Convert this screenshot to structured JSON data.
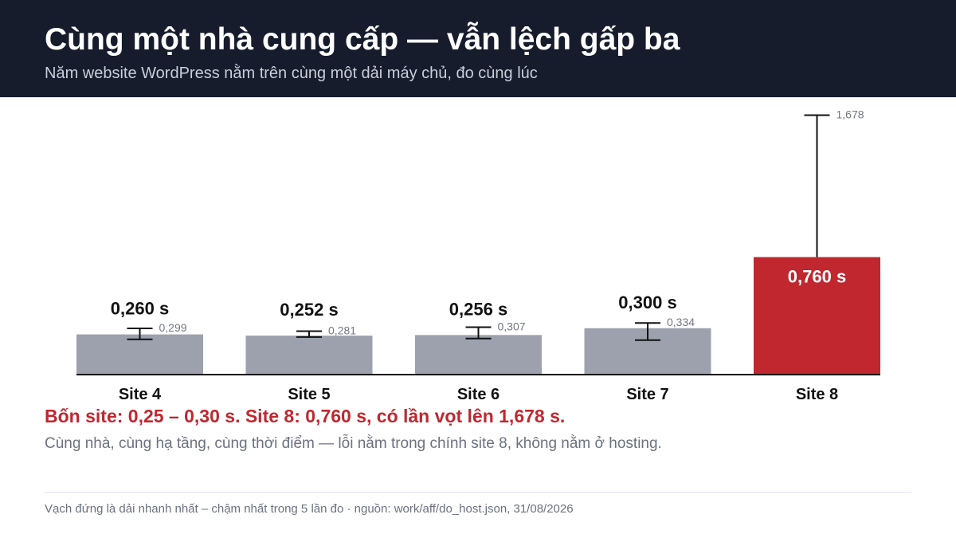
{
  "header": {
    "title": "Cùng một nhà cung cấp — vẫn lệch gấp ba",
    "subtitle": "Năm website WordPress nằm trên cùng một dải máy chủ, đo cùng lúc"
  },
  "colors": {
    "header_bg": "#161c2c",
    "bar_default": "#9ca1ad",
    "bar_highlight": "#c0272f",
    "axis": "#111111",
    "headline": "#c0272f"
  },
  "chart_data": {
    "type": "bar",
    "categories": [
      "Site 4",
      "Site 5",
      "Site 6",
      "Site 7",
      "Site 8"
    ],
    "values": [
      0.26,
      0.252,
      0.256,
      0.3,
      0.76
    ],
    "value_labels": [
      "0,260 s",
      "0,252 s",
      "0,256 s",
      "0,300 s",
      "0,760 s"
    ],
    "range_min": [
      0.228,
      0.243,
      0.233,
      0.223,
      0.76
    ],
    "range_max": [
      0.299,
      0.281,
      0.307,
      0.334,
      1.678
    ],
    "range_max_labels": [
      "0,299",
      "0,281",
      "0,307",
      "0,334",
      "1,678"
    ],
    "highlight_index": 4,
    "ylim": [
      0,
      1.75
    ],
    "grid": false,
    "legend": "none"
  },
  "annotation": {
    "headline": "Bốn site: 0,25 – 0,30 s. Site 8: 0,760 s, có lần vọt lên 1,678 s.",
    "note": "Cùng nhà, cùng hạ tầng, cùng thời điểm — lỗi nằm trong chính site 8, không nằm ở hosting."
  },
  "footer": {
    "text": "Vạch đứng là dải nhanh nhất – chậm nhất trong 5 lần đo · nguồn: work/aff/do_host.json, 31/08/2026"
  }
}
